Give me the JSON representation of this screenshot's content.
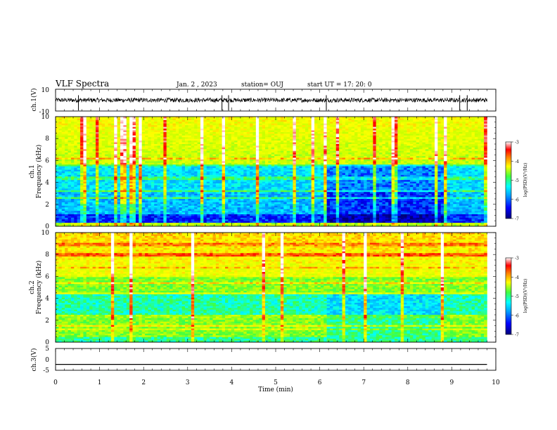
{
  "header": {
    "title": "VLF Spectra",
    "date": "Jan. 2 , 2023",
    "station": "station= OUJ",
    "start": "start UT = 17: 20: 0"
  },
  "chart_data": [
    {
      "type": "line",
      "panel": "ch1-waveform",
      "ylabel": "ch.1(V)",
      "ylim": [
        -10,
        10
      ],
      "ytick_labels": [
        "10",
        "-10"
      ],
      "xlim": [
        0,
        9.8
      ],
      "baseline": 0,
      "noise_amplitude": 2,
      "spikes": [
        0.52,
        3.78,
        3.93,
        6.15,
        9.18,
        9.35
      ]
    },
    {
      "type": "heatmap",
      "panel": "ch1-spectrogram",
      "ylabel": "Frequency (kHz)",
      "channel_label": "ch.1",
      "ylim": [
        0,
        10
      ],
      "ytick_labels": [
        "10",
        "8",
        "6",
        "4",
        "2",
        "0"
      ],
      "xlim": [
        0,
        9.8
      ],
      "colorbar": {
        "range": [
          -7,
          -3
        ],
        "ticks": [
          "-3",
          "-4",
          "-5",
          "-6",
          "-7"
        ],
        "label": "log(PSD)(V²/Hz)"
      }
    },
    {
      "type": "heatmap",
      "panel": "ch2-spectrogram",
      "ylabel": "Frequency (kHz)",
      "channel_label": "ch.2",
      "ylim": [
        0,
        10
      ],
      "ytick_labels": [
        "10",
        "8",
        "6",
        "4",
        "2",
        "0"
      ],
      "xlim": [
        0,
        9.8
      ],
      "colorbar": {
        "range": [
          -7,
          -3
        ],
        "ticks": [
          "-3",
          "-4",
          "-5",
          "-6",
          "-7"
        ],
        "label": "log(PSD)(V²/Hz)"
      }
    },
    {
      "type": "line",
      "panel": "ch3-waveform",
      "ylabel": "ch.3(V)",
      "ylim": [
        -5,
        5
      ],
      "ytick_labels": [
        "5",
        "0",
        "-5"
      ],
      "xlim": [
        0,
        9.8
      ],
      "constant_value": -2.3
    }
  ],
  "x_axis": {
    "label": "Time (min)",
    "range": [
      0,
      10
    ],
    "tick_labels": [
      "0",
      "1",
      "2",
      "3",
      "4",
      "5",
      "6",
      "7",
      "8",
      "9",
      "10"
    ]
  },
  "colors": {
    "colormap": [
      "#00007a",
      "#0000ff",
      "#00a0ff",
      "#00ffff",
      "#40ff40",
      "#c8ff00",
      "#ffff00",
      "#ff8000",
      "#ff0000",
      "#ffffff"
    ],
    "line": "#000000"
  }
}
